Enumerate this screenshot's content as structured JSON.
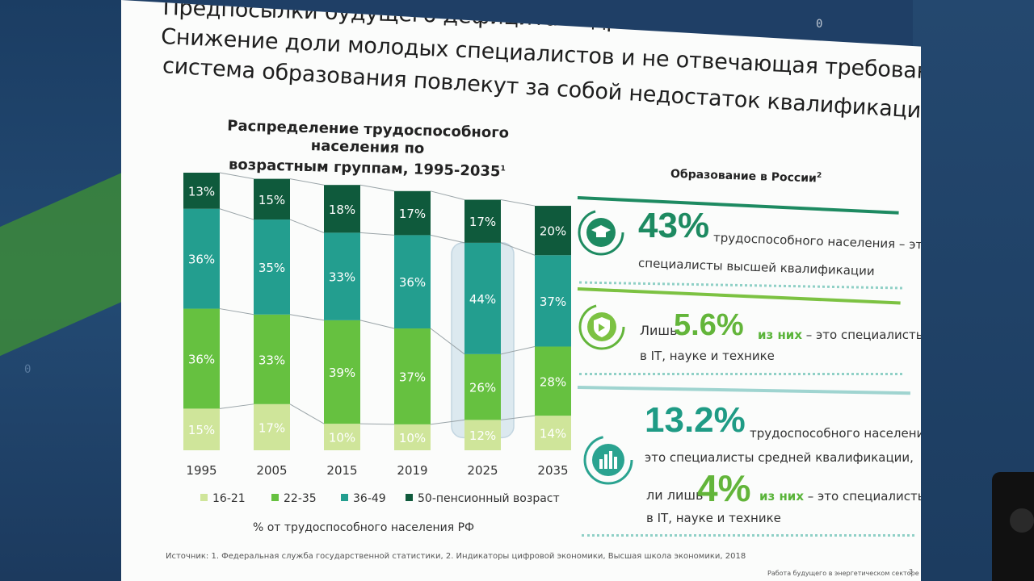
{
  "slide": {
    "title_line1": "Предпосылки будущего дефицита кадров в России",
    "title_line2": "Снижение доли молодых специалистов и не отвечающая требованиям рынка",
    "title_line3": "система образования повлекут за собой недостаток квалификации кадров в стране",
    "source": "Источник: 1. Федеральная служба государственной статистики, 2. Индикаторы цифровой экономики, Высшая школа экономики, 2018",
    "footer": "Работа будущего в энергетическом секторе",
    "page_number": "3"
  },
  "chart_data": {
    "type": "bar",
    "stacked": true,
    "title_line1": "Распределение трудоспособного населения по",
    "title_line2": "возрастным группам, 1995-2035",
    "title_sup": "1",
    "categories": [
      "1995",
      "2005",
      "2015",
      "2019",
      "2025",
      "2035"
    ],
    "series": [
      {
        "name": "16-21",
        "color": "#cfe59a",
        "values": [
          15,
          17,
          10,
          10,
          12,
          14
        ]
      },
      {
        "name": "22-35",
        "color": "#66c140",
        "values": [
          36,
          33,
          39,
          37,
          26,
          28
        ]
      },
      {
        "name": "36-49",
        "color": "#239e8f",
        "values": [
          36,
          35,
          33,
          36,
          44,
          37
        ]
      },
      {
        "name": "50-пенсионный возраст",
        "color": "#0f5a3c",
        "values": [
          13,
          15,
          18,
          17,
          17,
          20
        ]
      }
    ],
    "ylim": [
      0,
      100
    ],
    "xlabel": "% от трудоспособного населения РФ",
    "highlight_category": "2025",
    "legend_position": "bottom"
  },
  "right_panel": {
    "heading": "Образование в России",
    "heading_sup": "2",
    "stat1": {
      "value": "43%",
      "line1": "трудоспособного населения – это",
      "line2": "специалисты высшей квалификации"
    },
    "stat2": {
      "prefix": "Лишь",
      "value": "5.6%",
      "highlight": "из них",
      "line1_rest": "– это специалисты",
      "line2": "в IT, науке и технике"
    },
    "stat3": {
      "value": "13.2%",
      "line1": "трудоспособного населения –",
      "line2": "это специалисты средней квалификации,"
    },
    "stat4": {
      "prefix": "ли лишь",
      "value": "4%",
      "highlight": "из них",
      "line1_rest": "– это специалисты",
      "line2": "в IT, науке и технике"
    },
    "colors": {
      "dark_green": "#1d8a61",
      "lime": "#63b53a",
      "teal": "#2aa390"
    }
  }
}
